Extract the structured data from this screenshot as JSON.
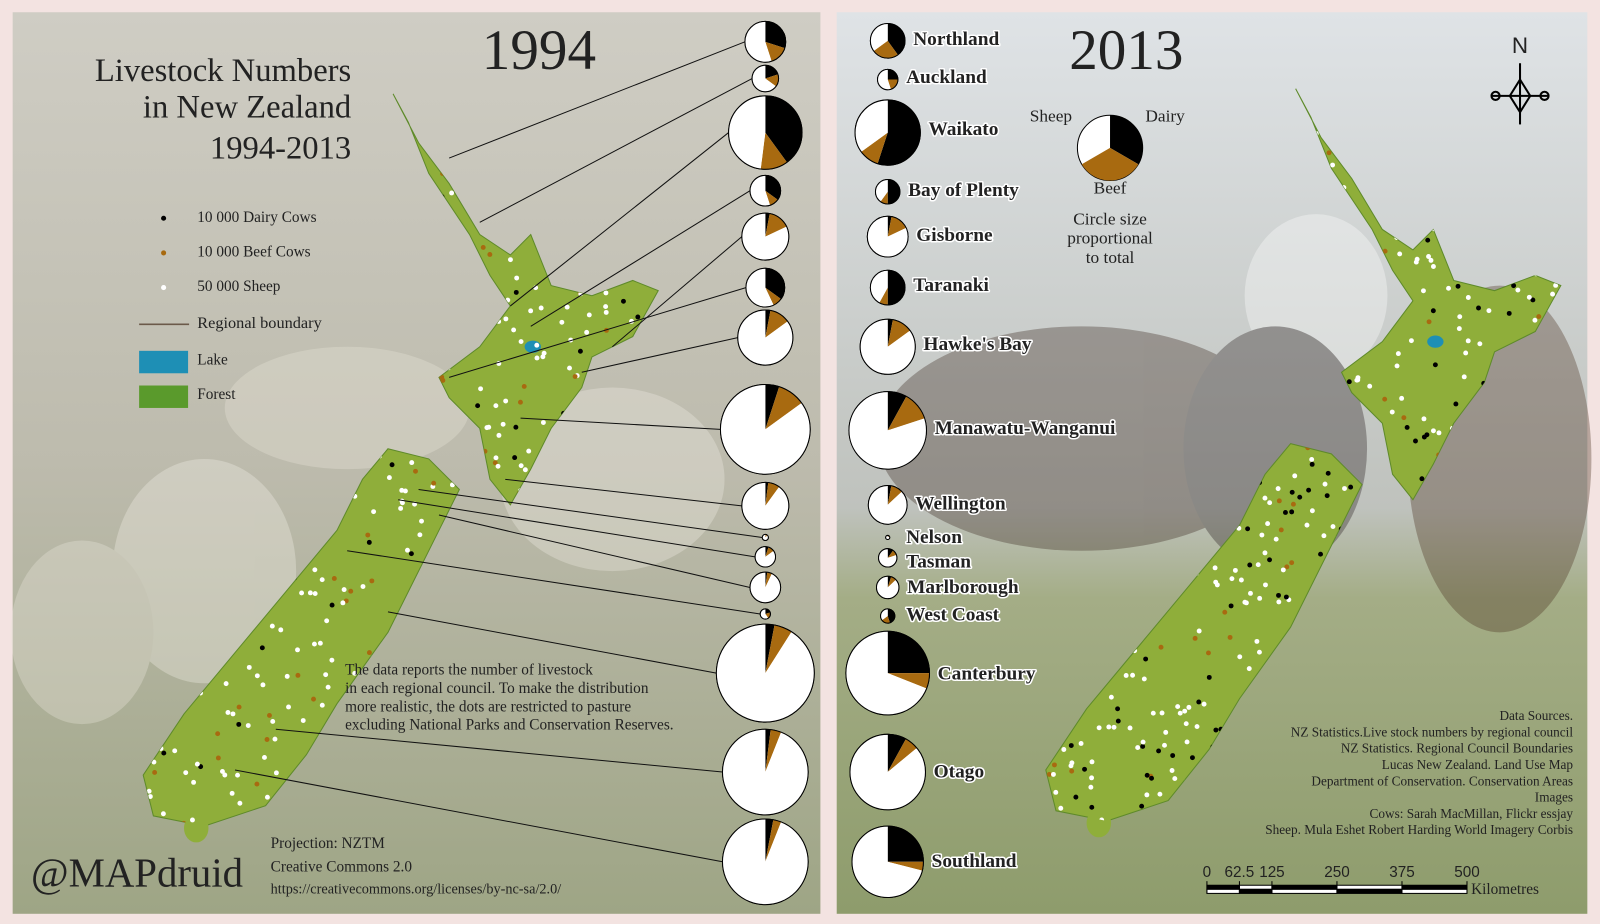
{
  "left": {
    "year": "1994",
    "title": [
      "Livestock Numbers",
      "in New Zealand",
      "1994-2013"
    ],
    "legend": [
      "10 000 Dairy Cows",
      "10 000 Beef Cows",
      "50 000 Sheep",
      "Regional boundary",
      "Lake",
      "Forest"
    ],
    "note": [
      "The data reports the number of livestock",
      "in each regional council. To make the distribution",
      "more realistic, the dots are restricted to pasture",
      "excluding National Parks and Conservation Reserves."
    ],
    "projection": "Projection: NZTM",
    "license": "Creative Commons 2.0",
    "url": "https://creativecommons.org/licenses/by-nc-sa/2.0/",
    "signature": "@MAPdruid"
  },
  "right": {
    "year": "2013",
    "north": "N",
    "key": {
      "sheep": "Sheep",
      "dairy": "Dairy",
      "beef": "Beef",
      "caption": [
        "Circle size",
        "proportional",
        "to total"
      ]
    },
    "sources": [
      "Data Sources.",
      "NZ Statistics.Live stock numbers by regional council",
      "NZ Statistics. Regional Council Boundaries",
      "Lucas New Zealand. Land Use Map",
      "Department of Conservation. Conservation Areas",
      "Images",
      "Cows: Sarah MacMillan, Flickr essjay",
      "Sheep. Mula Eshet Robert Harding World Imagery Corbis"
    ],
    "scale": {
      "ticks": [
        0,
        62.5,
        125,
        250,
        375,
        500
      ],
      "unit": "Kilometres"
    }
  },
  "regions": [
    "Northland",
    "Auckland",
    "Waikato",
    "Bay of Plenty",
    "Gisborne",
    "Taranaki",
    "Hawke's Bay",
    "Manawatu-Wanganui",
    "Wellington",
    "Nelson",
    "Tasman",
    "Marlborough",
    "West Coast",
    "Canterbury",
    "Otago",
    "Southland"
  ],
  "pies": {
    "1994": [
      {
        "dairy": 30,
        "beef": 15,
        "sheep": 55,
        "total": 400
      },
      {
        "dairy": 20,
        "beef": 15,
        "sheep": 65,
        "total": 169
      },
      {
        "dairy": 40,
        "beef": 12,
        "sheep": 48,
        "total": 1296
      },
      {
        "dairy": 35,
        "beef": 10,
        "sheep": 55,
        "total": 225
      },
      {
        "dairy": 3,
        "beef": 15,
        "sheep": 82,
        "total": 529
      },
      {
        "dairy": 35,
        "beef": 8,
        "sheep": 57,
        "total": 361
      },
      {
        "dairy": 3,
        "beef": 12,
        "sheep": 85,
        "total": 729
      },
      {
        "dairy": 5,
        "beef": 10,
        "sheep": 85,
        "total": 1936
      },
      {
        "dairy": 2,
        "beef": 8,
        "sheep": 90,
        "total": 529
      },
      {
        "dairy": 2,
        "beef": 10,
        "sheep": 88,
        "total": 9
      },
      {
        "dairy": 5,
        "beef": 10,
        "sheep": 85,
        "total": 100
      },
      {
        "dairy": 2,
        "beef": 5,
        "sheep": 93,
        "total": 225
      },
      {
        "dairy": 20,
        "beef": 20,
        "sheep": 60,
        "total": 25
      },
      {
        "dairy": 3,
        "beef": 6,
        "sheep": 91,
        "total": 2304
      },
      {
        "dairy": 2,
        "beef": 4,
        "sheep": 94,
        "total": 1764
      },
      {
        "dairy": 3,
        "beef": 3,
        "sheep": 94,
        "total": 1764
      }
    ],
    "2013": [
      {
        "dairy": 40,
        "beef": 25,
        "sheep": 35,
        "total": 289
      },
      {
        "dairy": 25,
        "beef": 20,
        "sheep": 55,
        "total": 100
      },
      {
        "dairy": 55,
        "beef": 10,
        "sheep": 35,
        "total": 1024
      },
      {
        "dairy": 50,
        "beef": 10,
        "sheep": 40,
        "total": 144
      },
      {
        "dairy": 3,
        "beef": 15,
        "sheep": 82,
        "total": 400
      },
      {
        "dairy": 50,
        "beef": 8,
        "sheep": 42,
        "total": 289
      },
      {
        "dairy": 3,
        "beef": 12,
        "sheep": 85,
        "total": 729
      },
      {
        "dairy": 8,
        "beef": 12,
        "sheep": 80,
        "total": 1444
      },
      {
        "dairy": 3,
        "beef": 10,
        "sheep": 87,
        "total": 361
      },
      {
        "dairy": 5,
        "beef": 10,
        "sheep": 85,
        "total": 4
      },
      {
        "dairy": 10,
        "beef": 10,
        "sheep": 80,
        "total": 81
      },
      {
        "dairy": 5,
        "beef": 8,
        "sheep": 87,
        "total": 121
      },
      {
        "dairy": 45,
        "beef": 20,
        "sheep": 35,
        "total": 49
      },
      {
        "dairy": 25,
        "beef": 6,
        "sheep": 69,
        "total": 1681
      },
      {
        "dairy": 8,
        "beef": 6,
        "sheep": 86,
        "total": 1369
      },
      {
        "dairy": 25,
        "beef": 4,
        "sheep": 71,
        "total": 1225
      }
    ]
  }
}
